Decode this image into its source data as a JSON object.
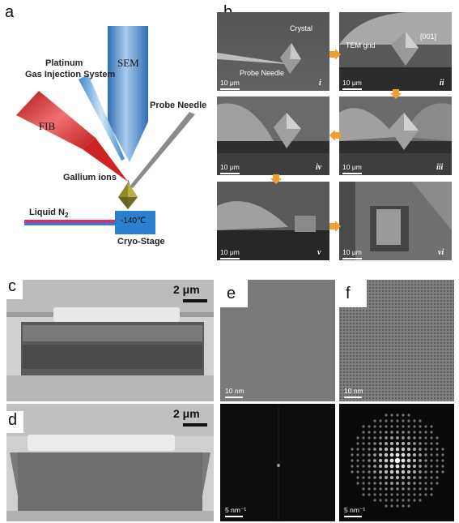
{
  "panels": {
    "a": "a",
    "b": "b",
    "c": "c",
    "d": "d",
    "e": "e",
    "f": "f"
  },
  "schematic": {
    "sem": "SEM",
    "fib": "FIB",
    "gis_line1": "Platinum",
    "gis_line2": "Gas Injection System",
    "probe_needle": "Probe Needle",
    "gallium_ions": "Gallium ions",
    "liquid_n2": "Liquid N",
    "liquid_n2_sub": "2",
    "temperature": "-140℃",
    "cryo_stage": "Cryo-Stage"
  },
  "b_tiles": {
    "i": {
      "roman": "i",
      "scale": "10 μm",
      "crystal": "Crystal",
      "probe": "Probe Needle"
    },
    "ii": {
      "roman": "ii",
      "scale": "10 μm",
      "tem_grid": "TEM grid",
      "dir": "[001]"
    },
    "iii": {
      "roman": "iii",
      "scale": "10 μm"
    },
    "iv": {
      "roman": "iv",
      "scale": "10 μm"
    },
    "v": {
      "roman": "v",
      "scale": "10 μm"
    },
    "vi": {
      "roman": "vi",
      "scale": "10 μm"
    }
  },
  "c_scale": "2 μm",
  "d_scale": "2 μm",
  "e_top_scale": "10 nm",
  "e_bottom_scale": "5 nm⁻¹",
  "f_top_scale": "10 nm",
  "f_bottom_scale": "5 nm⁻¹",
  "colors": {
    "sem_blue": "#4a86c8",
    "fib_red": "#d8262a",
    "crystal_olive": "#8a8a2a",
    "stage_blue": "#2a7fd0",
    "arrow_orange": "#f0a030"
  }
}
